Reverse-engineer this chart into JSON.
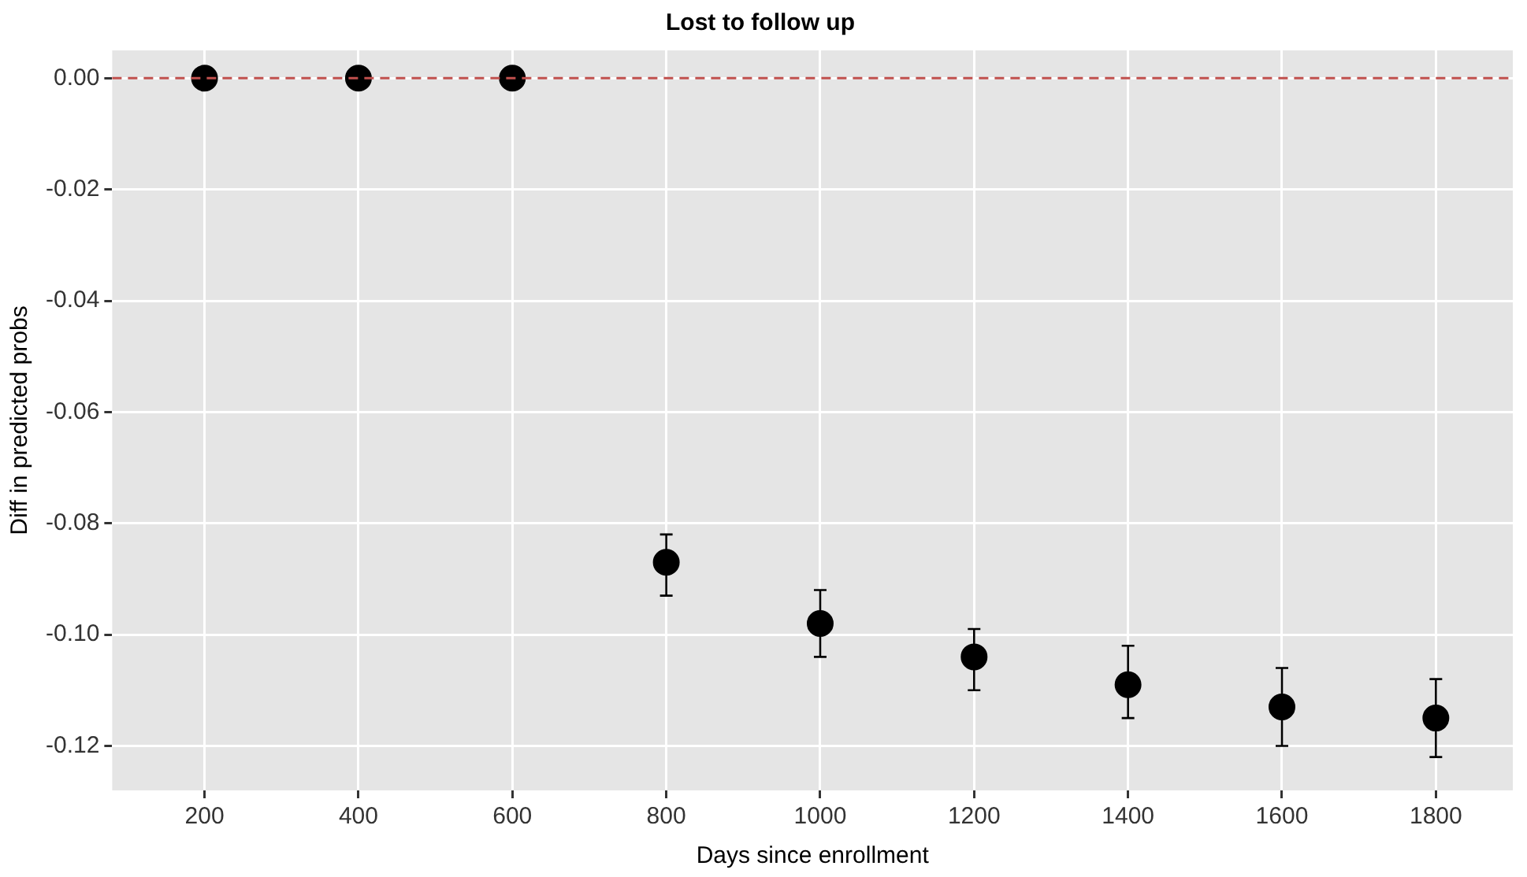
{
  "chart_data": {
    "type": "scatter",
    "title": "Lost to follow up",
    "xlabel": "Days since enrollment",
    "ylabel": "Diff in predicted probs",
    "x": [
      200,
      400,
      600,
      800,
      1000,
      1200,
      1400,
      1600,
      1800
    ],
    "series": [
      {
        "color": "#000000",
        "values": [
          0,
          0,
          0,
          -0.087,
          -0.098,
          -0.104,
          -0.109,
          -0.113,
          -0.115
        ],
        "errors": [
          null,
          null,
          null,
          [
            -0.093,
            -0.082
          ],
          [
            -0.104,
            -0.092
          ],
          [
            -0.11,
            -0.099
          ],
          [
            -0.115,
            -0.102
          ],
          [
            -0.12,
            -0.106
          ],
          [
            -0.122,
            -0.108
          ]
        ]
      }
    ],
    "xlim": [
      80,
      1900
    ],
    "xticks": [
      200,
      400,
      600,
      800,
      1000,
      1200,
      1400,
      1600,
      1800
    ],
    "ylim": [
      -0.128,
      0.005
    ],
    "yticks": [
      {
        "value": 0,
        "label": "0.00"
      },
      {
        "value": -0.02,
        "label": "-0.02"
      },
      {
        "value": -0.04,
        "label": "-0.04"
      },
      {
        "value": -0.06,
        "label": "-0.06"
      },
      {
        "value": -0.08,
        "label": "-0.08"
      },
      {
        "value": -0.1,
        "label": "-0.10"
      },
      {
        "value": -0.12,
        "label": "-0.12"
      }
    ],
    "ref_lines": [
      {
        "axis": "y",
        "value": 0,
        "color": "#c0504d",
        "line_style": "dashed"
      }
    ],
    "grid": true,
    "legend": false,
    "marker": "circle"
  }
}
